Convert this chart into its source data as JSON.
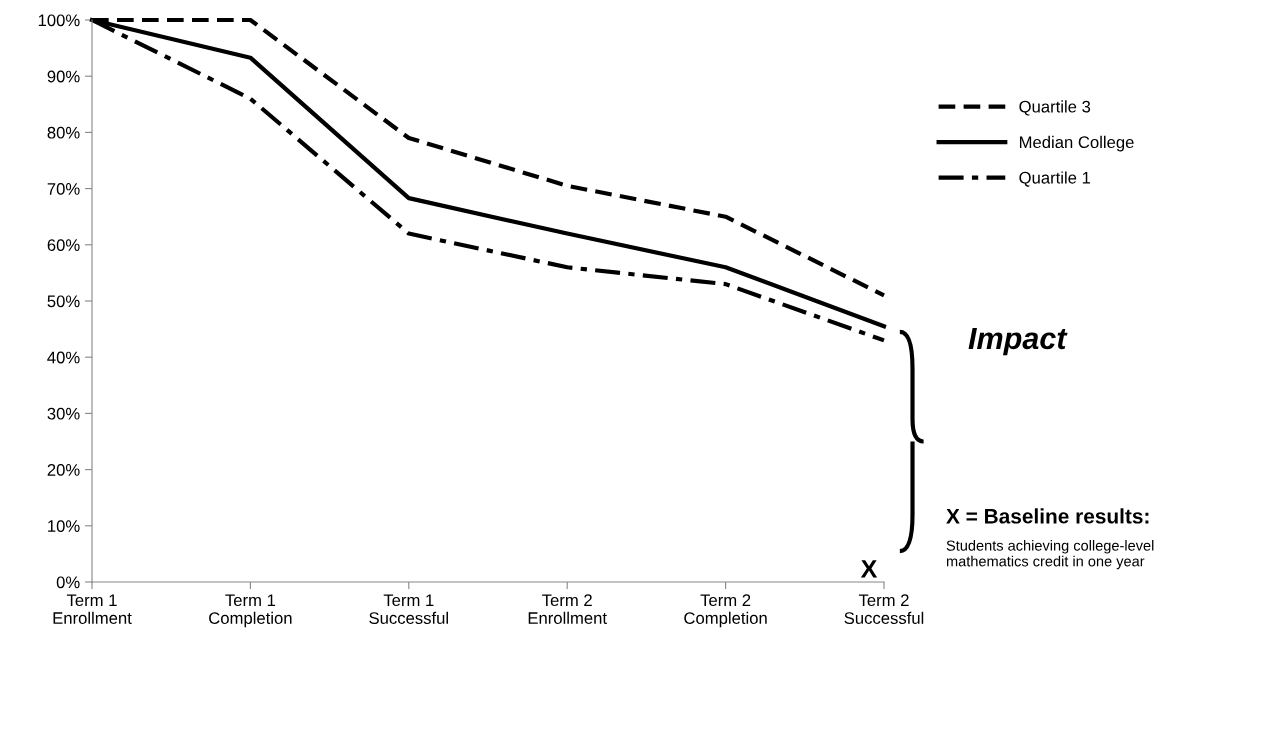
{
  "chart_data": {
    "type": "line",
    "categories": [
      "Term 1\nEnrollment",
      "Term 1\nCompletion",
      "Term 1\nSuccessful",
      "Term 2\nEnrollment",
      "Term 2\nCompletion",
      "Term 2\nSuccessful"
    ],
    "series": [
      {
        "name": "Quartile 3",
        "color": "#000000",
        "line_style": "dashed",
        "values": [
          100,
          100,
          79,
          70.5,
          65,
          51
        ]
      },
      {
        "name": "Median College",
        "color": "#000000",
        "line_style": "solid",
        "values": [
          100,
          93.3,
          68.3,
          62,
          56,
          45.5
        ]
      },
      {
        "name": "Quartile 1",
        "color": "#000000",
        "line_style": "dashdot",
        "values": [
          100,
          86,
          62,
          56,
          53,
          43
        ]
      }
    ],
    "ylim": [
      0,
      100
    ],
    "yticks": [
      {
        "value": 0,
        "label": "0%"
      },
      {
        "value": 10,
        "label": "10%"
      },
      {
        "value": 20,
        "label": "20%"
      },
      {
        "value": 30,
        "label": "30%"
      },
      {
        "value": 40,
        "label": "40%"
      },
      {
        "value": 50,
        "label": "50%"
      },
      {
        "value": 60,
        "label": "60%"
      },
      {
        "value": 70,
        "label": "70%"
      },
      {
        "value": 80,
        "label": "80%"
      },
      {
        "value": 90,
        "label": "90%"
      },
      {
        "value": 100,
        "label": "100%"
      }
    ],
    "grid": false,
    "legend": "right",
    "marker": "none",
    "annotations": [
      "Impact",
      "X = Baseline results:",
      "Students achieving college-level mathematics credit in one year",
      "X"
    ]
  }
}
